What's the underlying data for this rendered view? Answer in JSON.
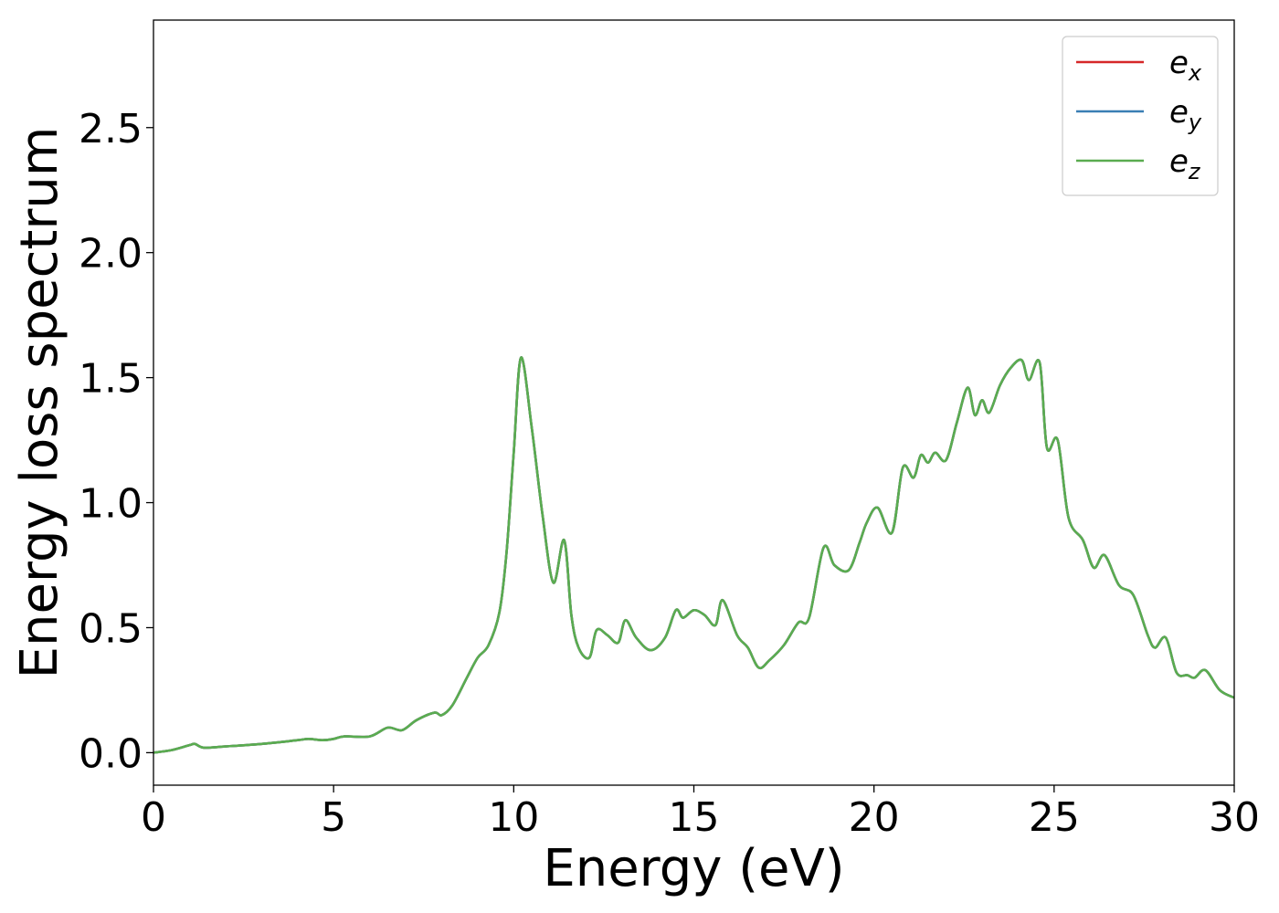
{
  "chart_data": {
    "type": "line",
    "title": "",
    "xlabel": "Energy (eV)",
    "ylabel": "Energy loss spectrum",
    "xlim": [
      0,
      30
    ],
    "ylim": [
      -0.13,
      2.93
    ],
    "xticks": [
      0,
      5,
      10,
      15,
      20,
      25,
      30
    ],
    "xtick_labels": [
      "0",
      "5",
      "10",
      "15",
      "20",
      "25",
      "30"
    ],
    "yticks": [
      0.0,
      0.5,
      1.0,
      1.5,
      2.0,
      2.5
    ],
    "ytick_labels": [
      "0.0",
      "0.5",
      "1.0",
      "1.5",
      "2.0",
      "2.5"
    ],
    "grid": false,
    "legend_position": "top-right",
    "legend": [
      {
        "base": "e",
        "sub": "x",
        "color": "#d62728"
      },
      {
        "base": "e",
        "sub": "y",
        "color": "#3a7fb4"
      },
      {
        "base": "e",
        "sub": "z",
        "color": "#5aac50"
      }
    ],
    "x": [
      0,
      0.5,
      1.0,
      1.15,
      1.4,
      2.0,
      3.0,
      4.0,
      4.3,
      4.7,
      5.0,
      5.3,
      6.0,
      6.5,
      6.9,
      7.3,
      7.8,
      8.0,
      8.3,
      8.7,
      9.0,
      9.3,
      9.6,
      9.8,
      10.0,
      10.2,
      10.5,
      10.8,
      11.1,
      11.4,
      11.6,
      11.8,
      12.1,
      12.3,
      12.6,
      12.9,
      13.1,
      13.4,
      13.8,
      14.2,
      14.5,
      14.7,
      15.0,
      15.3,
      15.6,
      15.8,
      16.2,
      16.5,
      16.8,
      17.1,
      17.5,
      17.9,
      18.2,
      18.6,
      18.9,
      19.3,
      19.6,
      19.8,
      20.1,
      20.5,
      20.8,
      21.1,
      21.3,
      21.5,
      21.7,
      22.0,
      22.3,
      22.6,
      22.8,
      23.0,
      23.2,
      23.5,
      23.8,
      24.1,
      24.3,
      24.6,
      24.8,
      25.1,
      25.4,
      25.8,
      26.1,
      26.4,
      26.8,
      27.2,
      27.6,
      27.8,
      28.1,
      28.4,
      28.7,
      28.9,
      29.2,
      29.6,
      30.0
    ],
    "series": [
      {
        "name": "e_x",
        "color": "#d62728",
        "values": [
          0.0,
          0.01,
          0.03,
          0.035,
          0.02,
          0.025,
          0.035,
          0.05,
          0.055,
          0.05,
          0.055,
          0.065,
          0.065,
          0.1,
          0.09,
          0.13,
          0.16,
          0.15,
          0.19,
          0.3,
          0.38,
          0.43,
          0.56,
          0.8,
          1.2,
          1.58,
          1.3,
          0.95,
          0.68,
          0.85,
          0.55,
          0.42,
          0.38,
          0.49,
          0.47,
          0.44,
          0.53,
          0.46,
          0.41,
          0.46,
          0.57,
          0.54,
          0.57,
          0.55,
          0.51,
          0.61,
          0.47,
          0.42,
          0.34,
          0.37,
          0.43,
          0.52,
          0.54,
          0.82,
          0.75,
          0.73,
          0.84,
          0.92,
          0.98,
          0.88,
          1.14,
          1.1,
          1.19,
          1.16,
          1.2,
          1.17,
          1.32,
          1.46,
          1.35,
          1.41,
          1.36,
          1.47,
          1.54,
          1.57,
          1.49,
          1.56,
          1.22,
          1.25,
          0.94,
          0.85,
          0.74,
          0.79,
          0.67,
          0.63,
          0.47,
          0.42,
          0.46,
          0.32,
          0.31,
          0.3,
          0.33,
          0.25,
          0.22
        ]
      },
      {
        "name": "e_y",
        "color": "#3a7fb4",
        "values": [
          0.0,
          0.01,
          0.03,
          0.035,
          0.02,
          0.025,
          0.035,
          0.05,
          0.055,
          0.05,
          0.055,
          0.065,
          0.065,
          0.1,
          0.09,
          0.13,
          0.16,
          0.15,
          0.19,
          0.3,
          0.38,
          0.43,
          0.56,
          0.8,
          1.2,
          1.58,
          1.3,
          0.95,
          0.68,
          0.85,
          0.55,
          0.42,
          0.38,
          0.49,
          0.47,
          0.44,
          0.53,
          0.46,
          0.41,
          0.46,
          0.57,
          0.54,
          0.57,
          0.55,
          0.51,
          0.61,
          0.47,
          0.42,
          0.34,
          0.37,
          0.43,
          0.52,
          0.54,
          0.82,
          0.75,
          0.73,
          0.84,
          0.92,
          0.98,
          0.88,
          1.14,
          1.1,
          1.19,
          1.16,
          1.2,
          1.17,
          1.32,
          1.46,
          1.35,
          1.41,
          1.36,
          1.47,
          1.54,
          1.57,
          1.49,
          1.56,
          1.22,
          1.25,
          0.94,
          0.85,
          0.74,
          0.79,
          0.67,
          0.63,
          0.47,
          0.42,
          0.46,
          0.32,
          0.31,
          0.3,
          0.33,
          0.25,
          0.22
        ]
      },
      {
        "name": "e_z",
        "color": "#5aac50",
        "values": [
          0.0,
          0.01,
          0.03,
          0.035,
          0.02,
          0.025,
          0.035,
          0.05,
          0.055,
          0.05,
          0.055,
          0.065,
          0.065,
          0.1,
          0.09,
          0.13,
          0.16,
          0.15,
          0.19,
          0.3,
          0.38,
          0.43,
          0.56,
          0.8,
          1.2,
          1.58,
          1.3,
          0.95,
          0.68,
          0.85,
          0.55,
          0.42,
          0.38,
          0.49,
          0.47,
          0.44,
          0.53,
          0.46,
          0.41,
          0.46,
          0.57,
          0.54,
          0.57,
          0.55,
          0.51,
          0.61,
          0.47,
          0.42,
          0.34,
          0.37,
          0.43,
          0.52,
          0.54,
          0.82,
          0.75,
          0.73,
          0.84,
          0.92,
          0.98,
          0.88,
          1.14,
          1.1,
          1.19,
          1.16,
          1.2,
          1.17,
          1.32,
          1.46,
          1.35,
          1.41,
          1.36,
          1.47,
          1.54,
          1.57,
          1.49,
          1.56,
          1.22,
          1.25,
          0.94,
          0.85,
          0.74,
          0.79,
          0.67,
          0.63,
          0.47,
          0.42,
          0.46,
          0.32,
          0.31,
          0.3,
          0.33,
          0.25,
          0.22
        ]
      }
    ]
  }
}
